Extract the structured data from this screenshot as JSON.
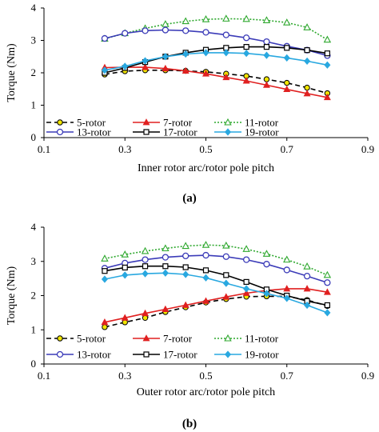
{
  "chart_data": [
    {
      "type": "line",
      "caption": "(a)",
      "title": "",
      "xlabel": "Inner rotor arc/rotor pole pitch",
      "ylabel": "Torque (Nm)",
      "xlim": [
        0.1,
        0.9
      ],
      "ylim": [
        0,
        4
      ],
      "xticks": [
        "0.1",
        "0.3",
        "0.5",
        "0.7",
        "0.9"
      ],
      "yticks": [
        "0",
        "1",
        "2",
        "3",
        "4"
      ],
      "grid": false,
      "legend_position": "bottom-inside",
      "series": [
        {
          "name": "5-rotor",
          "color": "#000000",
          "dash": "dashed",
          "marker": "circle-yellow",
          "x": [
            0.25,
            0.3,
            0.35,
            0.4,
            0.45,
            0.5,
            0.55,
            0.6,
            0.65,
            0.7,
            0.75,
            0.8
          ],
          "y": [
            1.95,
            2.05,
            2.08,
            2.08,
            2.06,
            2.03,
            1.97,
            1.9,
            1.8,
            1.69,
            1.54,
            1.37
          ]
        },
        {
          "name": "7-rotor",
          "color": "#e02020",
          "dash": "solid",
          "marker": "triangle",
          "x": [
            0.25,
            0.3,
            0.35,
            0.4,
            0.45,
            0.5,
            0.55,
            0.6,
            0.65,
            0.7,
            0.75,
            0.8
          ],
          "y": [
            2.16,
            2.17,
            2.17,
            2.13,
            2.06,
            1.97,
            1.86,
            1.75,
            1.62,
            1.49,
            1.36,
            1.24
          ]
        },
        {
          "name": "11-rotor",
          "color": "#2ea82e",
          "dash": "dotted",
          "marker": "triangle-open",
          "x": [
            0.25,
            0.3,
            0.35,
            0.4,
            0.45,
            0.5,
            0.55,
            0.6,
            0.65,
            0.7,
            0.75,
            0.8
          ],
          "y": [
            3.05,
            3.22,
            3.37,
            3.5,
            3.59,
            3.65,
            3.67,
            3.66,
            3.62,
            3.55,
            3.4,
            3.02
          ]
        },
        {
          "name": "13-rotor",
          "color": "#3b3bb8",
          "dash": "solid",
          "marker": "circle-open",
          "x": [
            0.25,
            0.3,
            0.35,
            0.4,
            0.45,
            0.5,
            0.55,
            0.6,
            0.65,
            0.7,
            0.75,
            0.8
          ],
          "y": [
            3.06,
            3.22,
            3.3,
            3.32,
            3.3,
            3.25,
            3.17,
            3.08,
            2.96,
            2.82,
            2.7,
            2.53
          ]
        },
        {
          "name": "17-rotor",
          "color": "#000000",
          "dash": "solid",
          "marker": "square-open",
          "x": [
            0.25,
            0.3,
            0.35,
            0.4,
            0.45,
            0.5,
            0.55,
            0.6,
            0.65,
            0.7,
            0.75,
            0.8
          ],
          "y": [
            2.0,
            2.15,
            2.33,
            2.5,
            2.62,
            2.71,
            2.77,
            2.8,
            2.8,
            2.77,
            2.7,
            2.6
          ]
        },
        {
          "name": "19-rotor",
          "color": "#29a8e0",
          "dash": "solid",
          "marker": "diamond",
          "x": [
            0.25,
            0.3,
            0.35,
            0.4,
            0.45,
            0.5,
            0.55,
            0.6,
            0.65,
            0.7,
            0.75,
            0.8
          ],
          "y": [
            2.08,
            2.2,
            2.37,
            2.5,
            2.58,
            2.62,
            2.62,
            2.6,
            2.54,
            2.46,
            2.36,
            2.24
          ]
        }
      ]
    },
    {
      "type": "line",
      "caption": "(b)",
      "title": "",
      "xlabel": "Outer rotor arc/rotor pole pitch",
      "ylabel": "Torque (Nm)",
      "xlim": [
        0.1,
        0.9
      ],
      "ylim": [
        0,
        4
      ],
      "xticks": [
        "0.1",
        "0.3",
        "0.5",
        "0.7",
        "0.9"
      ],
      "yticks": [
        "0",
        "1",
        "2",
        "3",
        "4"
      ],
      "grid": false,
      "legend_position": "bottom-inside",
      "series": [
        {
          "name": "5-rotor",
          "color": "#000000",
          "dash": "dashed",
          "marker": "circle-yellow",
          "x": [
            0.25,
            0.3,
            0.35,
            0.4,
            0.45,
            0.5,
            0.55,
            0.6,
            0.65,
            0.7,
            0.75,
            0.8
          ],
          "y": [
            1.08,
            1.22,
            1.35,
            1.52,
            1.66,
            1.8,
            1.9,
            1.97,
            1.98,
            1.98,
            1.87,
            1.7
          ]
        },
        {
          "name": "7-rotor",
          "color": "#e02020",
          "dash": "solid",
          "marker": "triangle",
          "x": [
            0.25,
            0.3,
            0.35,
            0.4,
            0.45,
            0.5,
            0.55,
            0.6,
            0.65,
            0.7,
            0.75,
            0.8
          ],
          "y": [
            1.22,
            1.35,
            1.48,
            1.6,
            1.72,
            1.84,
            1.96,
            2.07,
            2.15,
            2.2,
            2.2,
            2.1
          ]
        },
        {
          "name": "11-rotor",
          "color": "#2ea82e",
          "dash": "dotted",
          "marker": "triangle-open",
          "x": [
            0.25,
            0.3,
            0.35,
            0.4,
            0.45,
            0.5,
            0.55,
            0.6,
            0.65,
            0.7,
            0.75,
            0.8
          ],
          "y": [
            3.08,
            3.2,
            3.3,
            3.38,
            3.45,
            3.48,
            3.46,
            3.36,
            3.22,
            3.05,
            2.85,
            2.6
          ]
        },
        {
          "name": "13-rotor",
          "color": "#3b3bb8",
          "dash": "solid",
          "marker": "circle-open",
          "x": [
            0.25,
            0.3,
            0.35,
            0.4,
            0.45,
            0.5,
            0.55,
            0.6,
            0.65,
            0.7,
            0.75,
            0.8
          ],
          "y": [
            2.8,
            2.95,
            3.05,
            3.12,
            3.16,
            3.18,
            3.14,
            3.05,
            2.92,
            2.75,
            2.57,
            2.38
          ]
        },
        {
          "name": "17-rotor",
          "color": "#000000",
          "dash": "solid",
          "marker": "square-open",
          "x": [
            0.25,
            0.3,
            0.35,
            0.4,
            0.45,
            0.5,
            0.55,
            0.6,
            0.65,
            0.7,
            0.75,
            0.8
          ],
          "y": [
            2.72,
            2.82,
            2.86,
            2.86,
            2.83,
            2.74,
            2.6,
            2.4,
            2.18,
            2.0,
            1.84,
            1.72
          ]
        },
        {
          "name": "19-rotor",
          "color": "#29a8e0",
          "dash": "solid",
          "marker": "diamond",
          "x": [
            0.25,
            0.3,
            0.35,
            0.4,
            0.45,
            0.5,
            0.55,
            0.6,
            0.65,
            0.7,
            0.75,
            0.8
          ],
          "y": [
            2.48,
            2.6,
            2.64,
            2.66,
            2.62,
            2.52,
            2.36,
            2.2,
            2.06,
            1.92,
            1.72,
            1.5
          ]
        }
      ]
    }
  ]
}
